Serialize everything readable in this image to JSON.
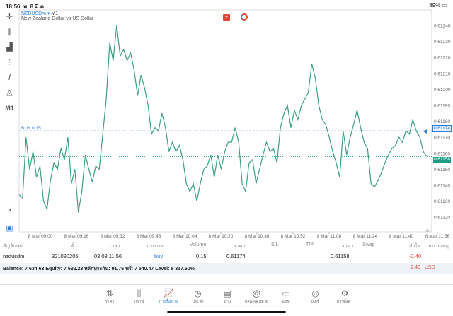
{
  "status": {
    "time": "18:56",
    "date": "พ. 8 มี.ค.",
    "battery": "89%"
  },
  "chart": {
    "symbol": "NZDUSDm",
    "timeframe": "M1",
    "description": "New Zealand Dollar vs US Dollar",
    "buy_label": "BUY 0.15",
    "ask_label": "0.61174",
    "bid_label": "0.61158",
    "colors": {
      "line": "#3aa07a",
      "ask": "#2a7fd8",
      "bid": "#1f9e85"
    }
  },
  "toolbar": {
    "crosshair": "crosshair-icon",
    "timeframe": "M1"
  },
  "chart_data": {
    "type": "line",
    "x_start": "8 Mar 08:57",
    "x_end": "8 Mar 11:56",
    "ylim": [
      0.61115,
      0.61245
    ],
    "yticks": [
      "0.61240",
      "0.61230",
      "0.61220",
      "0.61210",
      "0.61200",
      "0.61190",
      "0.61180",
      "0.61170",
      "0.61160",
      "0.61150",
      "0.61140",
      "0.61130",
      "0.61120"
    ],
    "xticks": [
      "8 Mar 09:00",
      "8 Mar 09:16",
      "8 Mar 09:32",
      "8 Mar 09:48",
      "8 Mar 10:04",
      "8 Mar 10:20",
      "8 Mar 10:36",
      "8 Mar 10:52",
      "8 Mar 11:08",
      "8 Mar 11:24",
      "8 Mar 11:40",
      "8 Mar 11:56"
    ],
    "grid": false,
    "values": [
      0.61134,
      0.61132,
      0.6117,
      0.6115,
      0.61161,
      0.61145,
      0.61152,
      0.6113,
      0.61125,
      0.61143,
      0.61154,
      0.6115,
      0.61163,
      0.61156,
      0.6117,
      0.61141,
      0.6115,
      0.61123,
      0.61136,
      0.61159,
      0.6115,
      0.61142,
      0.61152,
      0.6115,
      0.61172,
      0.61194,
      0.61229,
      0.61218,
      0.6124,
      0.61221,
      0.61225,
      0.61218,
      0.61223,
      0.61212,
      0.61196,
      0.61209,
      0.61201,
      0.6119,
      0.61172,
      0.61176,
      0.61174,
      0.61185,
      0.61176,
      0.61161,
      0.61167,
      0.61161,
      0.61165,
      0.61156,
      0.61141,
      0.61136,
      0.61141,
      0.6113,
      0.61141,
      0.6115,
      0.61152,
      0.61159,
      0.61145,
      0.61159,
      0.6115,
      0.61161,
      0.61167,
      0.61167,
      0.61176,
      0.61167,
      0.61141,
      0.61136,
      0.61154,
      0.61156,
      0.61141,
      0.6115,
      0.61159,
      0.61167,
      0.61161,
      0.61163,
      0.61154,
      0.61176,
      0.61185,
      0.6119,
      0.61176,
      0.61187,
      0.61181,
      0.6119,
      0.61194,
      0.61198,
      0.61216,
      0.61207,
      0.6119,
      0.61181,
      0.61178,
      0.6117,
      0.61161,
      0.61154,
      0.61145,
      0.61174,
      0.61159,
      0.6117,
      0.61178,
      0.61187,
      0.61176,
      0.61167,
      0.61163,
      0.61141,
      0.61139,
      0.61143,
      0.61148,
      0.61154,
      0.61159,
      0.61163,
      0.61165,
      0.6117,
      0.61167,
      0.61174,
      0.61172,
      0.61181,
      0.61174,
      0.6117,
      0.61161,
      0.61158
    ]
  },
  "table": {
    "headers": [
      "สัญลักษณ์",
      "ตั๋ว",
      "เวลา",
      "ประเภท",
      "Volume",
      "ราคา",
      "S/L",
      "T/P",
      "ราคา",
      "Swap",
      "กำไร",
      "หมายเหตุ"
    ],
    "row": {
      "symbol": "nzdusdm",
      "ticket": "321090205",
      "time": "03.08 11:56",
      "type": "buy",
      "volume": "0.15",
      "open_price": "0.61174",
      "sl": "",
      "tp": "",
      "price": "0.61158",
      "swap": "",
      "profit": "-2.40",
      "comment": ""
    },
    "balance_text": "Balance: 7 634.63 Equity: 7 632.23 หลักประกัน: 91.76 ฟรี: 7 540.47 Level: 8 317.60%",
    "total_profit": "-2.40",
    "currency": "USD"
  },
  "nav": [
    {
      "label": "ราคา",
      "icon": "⇅"
    },
    {
      "label": "กราฟ",
      "icon": "⫼"
    },
    {
      "label": "การซื้อขาย",
      "icon": "📈"
    },
    {
      "label": "ประวัติ",
      "icon": "◷"
    },
    {
      "label": "ข่าว",
      "icon": "▤"
    },
    {
      "label": "กล่องจดหมาย",
      "icon": "@"
    },
    {
      "label": "แชท",
      "icon": "▭"
    },
    {
      "label": "บัญชี",
      "icon": "◎"
    },
    {
      "label": "การตั้งค่า",
      "icon": "⚙"
    }
  ]
}
